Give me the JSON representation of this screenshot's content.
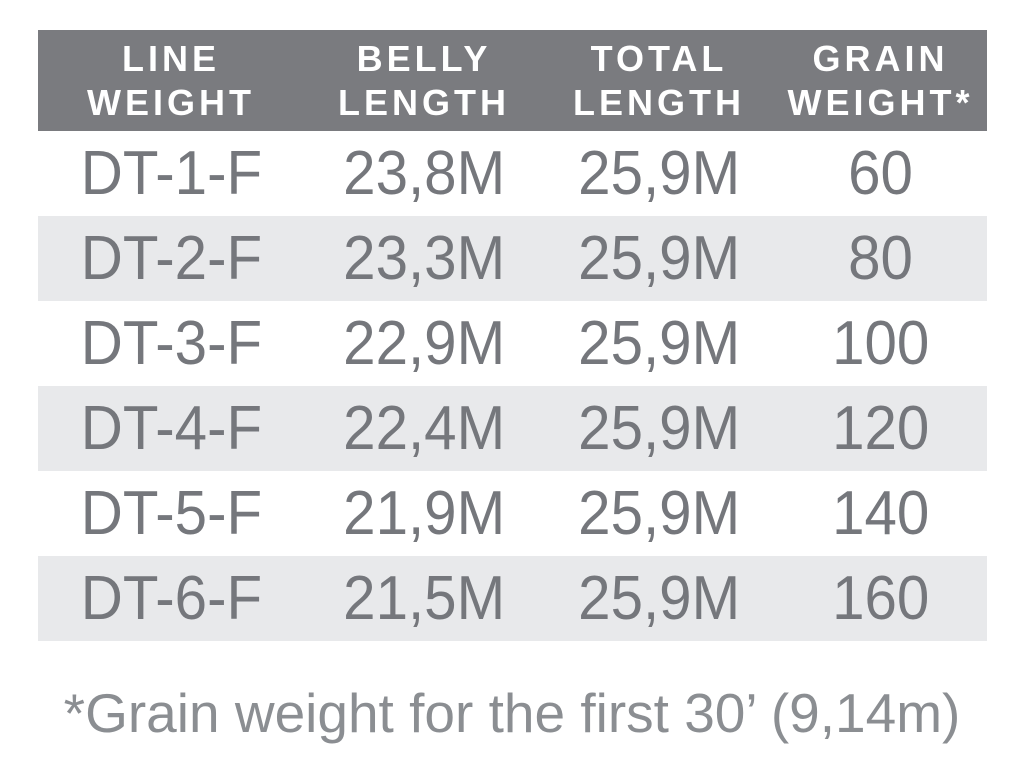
{
  "chart_data": {
    "type": "table",
    "title": "",
    "columns": [
      "LINE WEIGHT",
      "BELLY LENGTH",
      "TOTAL LENGTH",
      "GRAIN WEIGHT*"
    ],
    "rows": [
      [
        "DT-1-F",
        "23,8M",
        "25,9M",
        "60"
      ],
      [
        "DT-2-F",
        "23,3M",
        "25,9M",
        "80"
      ],
      [
        "DT-3-F",
        "22,9M",
        "25,9M",
        "100"
      ],
      [
        "DT-4-F",
        "22,4M",
        "25,9M",
        "120"
      ],
      [
        "DT-5-F",
        "21,9M",
        "25,9M",
        "140"
      ],
      [
        "DT-6-F",
        "21,5M",
        "25,9M",
        "160"
      ]
    ],
    "footnote": "*Grain weight for the first 30’ (9,14m)",
    "layout_hints": {
      "header_style": "dark-gray band, white bold uppercase, two lines per header",
      "row_striping": "even rows light gray",
      "alignment": "all cells centered"
    }
  },
  "header": {
    "columns": [
      {
        "line1": "LINE",
        "line2": "WEIGHT"
      },
      {
        "line1": "BELLY",
        "line2": "LENGTH"
      },
      {
        "line1": "TOTAL",
        "line2": "LENGTH"
      },
      {
        "line1": "GRAIN",
        "line2": "WEIGHT*"
      }
    ]
  },
  "footnote": "*Grain weight for the first 30’ (9,14m)",
  "colors": {
    "header_bg": "#7a7b7f",
    "header_text": "#ffffff",
    "row_alt_bg": "#e8e9eb",
    "row_text": "#75777c",
    "footnote_text": "#8b8e92",
    "page_bg": "#ffffff"
  }
}
